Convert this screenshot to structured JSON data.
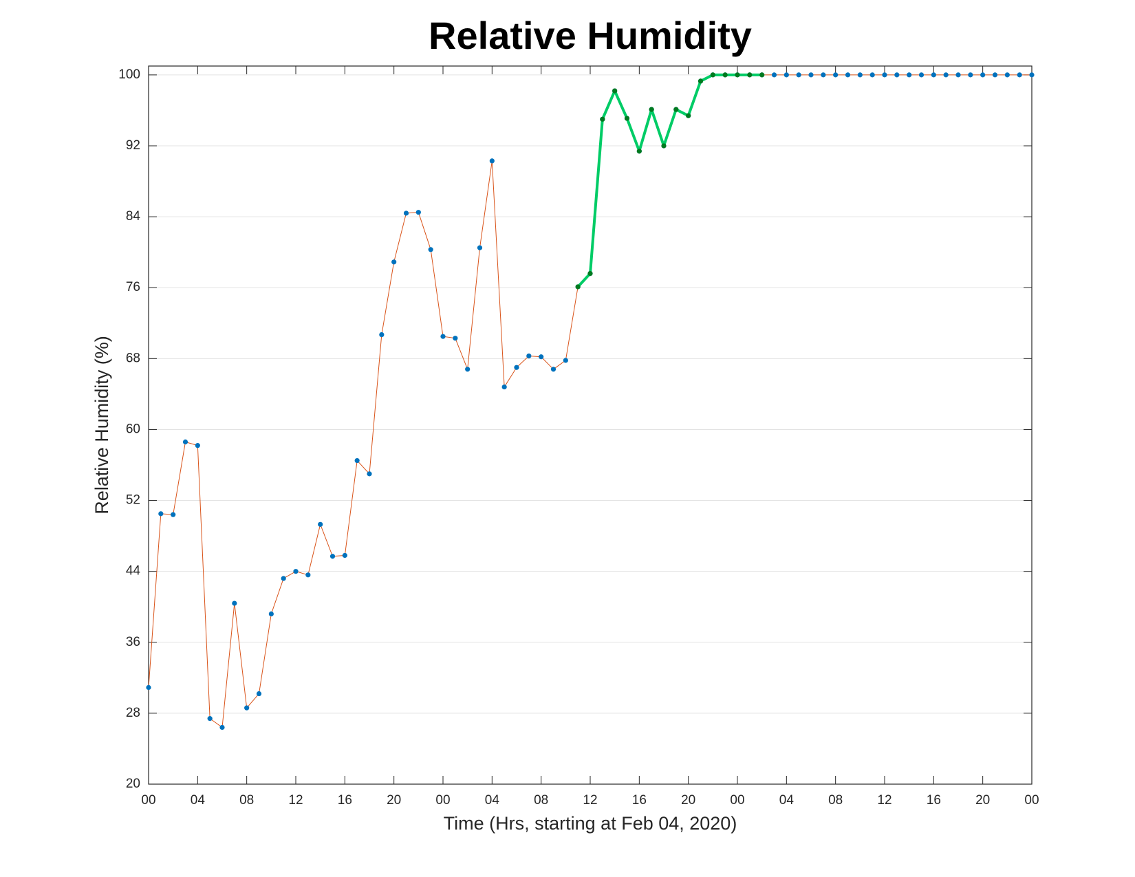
{
  "chart_data": {
    "type": "line",
    "title": "Relative Humidity",
    "xlabel": "Time (Hrs, starting at Feb 04, 2020)",
    "ylabel": "Relative Humidity (%)",
    "x": [
      0,
      1,
      2,
      3,
      4,
      5,
      6,
      7,
      8,
      9,
      10,
      11,
      12,
      13,
      14,
      15,
      16,
      17,
      18,
      19,
      20,
      21,
      22,
      23,
      24,
      25,
      26,
      27,
      28,
      29,
      30,
      31,
      32,
      33,
      34,
      35,
      36,
      37,
      38,
      39,
      40,
      41,
      42,
      43,
      44,
      45,
      46,
      47,
      48,
      49,
      50,
      51,
      52,
      53,
      54,
      55,
      56,
      57,
      58,
      59,
      60,
      61,
      62,
      63,
      64,
      65,
      66,
      67,
      68,
      69,
      70,
      71,
      72
    ],
    "series": [
      {
        "color": "#d95319",
        "marker_color": "#0072bd",
        "line_width": 1,
        "values": [
          30.9,
          50.5,
          50.4,
          58.6,
          58.2,
          27.4,
          26.4,
          40.4,
          28.6,
          30.2,
          39.2,
          43.2,
          44.0,
          43.6,
          49.3,
          45.7,
          45.8,
          56.5,
          55.0,
          70.7,
          78.9,
          84.4,
          84.5,
          80.3,
          70.5,
          70.3,
          66.8,
          80.5,
          90.3,
          64.8,
          67.0,
          68.3,
          68.2,
          66.8,
          67.8,
          76.1,
          77.6,
          95.0,
          98.2,
          95.1,
          91.4,
          96.1,
          92.0,
          96.1,
          95.4,
          99.3,
          100,
          100,
          100,
          100,
          100,
          100,
          100,
          100,
          100,
          100,
          100,
          100,
          100,
          100,
          100,
          100,
          100,
          100,
          100,
          100,
          100,
          100,
          100,
          100,
          100,
          100,
          100
        ]
      },
      {
        "color": "#00cc66",
        "marker_color": "#007a1f",
        "line_width": 4,
        "values": [
          null,
          null,
          null,
          null,
          null,
          null,
          null,
          null,
          null,
          null,
          null,
          null,
          null,
          null,
          null,
          null,
          null,
          null,
          null,
          null,
          null,
          null,
          null,
          null,
          null,
          null,
          null,
          null,
          null,
          null,
          null,
          null,
          null,
          null,
          null,
          76.1,
          77.6,
          95.0,
          98.2,
          95.1,
          91.4,
          96.1,
          92.0,
          96.1,
          95.4,
          99.3,
          100,
          100,
          100,
          100,
          100,
          null,
          null,
          null,
          null,
          null,
          null,
          null,
          null,
          null,
          null,
          null,
          null,
          null,
          null,
          null,
          null,
          null,
          null,
          null,
          null,
          null,
          null
        ]
      }
    ],
    "xlim": [
      0,
      72
    ],
    "xticks": [
      {
        "value": 0,
        "label": "00"
      },
      {
        "value": 4,
        "label": "04"
      },
      {
        "value": 8,
        "label": "08"
      },
      {
        "value": 12,
        "label": "12"
      },
      {
        "value": 16,
        "label": "16"
      },
      {
        "value": 20,
        "label": "20"
      },
      {
        "value": 24,
        "label": "00"
      },
      {
        "value": 28,
        "label": "04"
      },
      {
        "value": 32,
        "label": "08"
      },
      {
        "value": 36,
        "label": "12"
      },
      {
        "value": 40,
        "label": "16"
      },
      {
        "value": 44,
        "label": "20"
      },
      {
        "value": 48,
        "label": "00"
      },
      {
        "value": 52,
        "label": "04"
      },
      {
        "value": 56,
        "label": "08"
      },
      {
        "value": 60,
        "label": "12"
      },
      {
        "value": 64,
        "label": "16"
      },
      {
        "value": 68,
        "label": "20"
      },
      {
        "value": 72,
        "label": "00"
      }
    ],
    "ylim": [
      20,
      101
    ],
    "yticks": [
      20,
      28,
      36,
      44,
      52,
      60,
      68,
      76,
      84,
      92,
      100
    ],
    "grid": true
  }
}
